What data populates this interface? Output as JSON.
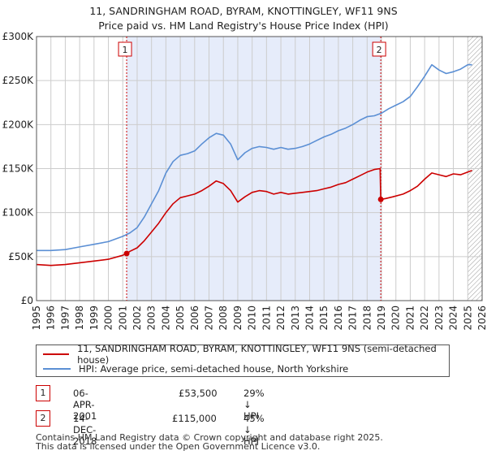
{
  "title_line1": "11, SANDRINGHAM ROAD, BYRAM, KNOTTINGLEY, WF11 9NS",
  "title_line2": "Price paid vs. HM Land Registry's House Price Index (HPI)",
  "chart_data": {
    "type": "line",
    "title": "11, SANDRINGHAM ROAD, BYRAM, KNOTTINGLEY, WF11 9NS — Price paid vs. HM Land Registry's House Price Index (HPI)",
    "xlim": [
      1995,
      2026
    ],
    "ylim": [
      0,
      300000
    ],
    "y_ticks": [
      0,
      50000,
      100000,
      150000,
      200000,
      250000,
      300000
    ],
    "y_tick_labels": [
      "£0",
      "£50K",
      "£100K",
      "£150K",
      "£200K",
      "£250K",
      "£300K"
    ],
    "x_ticks": [
      1995,
      1996,
      1997,
      1998,
      1999,
      2000,
      2001,
      2002,
      2003,
      2004,
      2005,
      2006,
      2007,
      2008,
      2009,
      2010,
      2011,
      2012,
      2013,
      2014,
      2015,
      2016,
      2017,
      2018,
      2019,
      2020,
      2021,
      2022,
      2023,
      2024,
      2025,
      2026
    ],
    "grid": true,
    "shaded_region": [
      2001.27,
      2018.95
    ],
    "hatched_after": 2025.0,
    "series": [
      {
        "name": "11, SANDRINGHAM ROAD, BYRAM, KNOTTINGLEY, WF11 9NS (semi-detached house)",
        "color": "#cc0000",
        "x": [
          1995,
          1996,
          1997,
          1998,
          1999,
          2000,
          2001.0,
          2001.27,
          2001.5,
          2002,
          2002.5,
          2003,
          2003.5,
          2004,
          2004.5,
          2005,
          2005.5,
          2006,
          2006.5,
          2007,
          2007.5,
          2008,
          2008.5,
          2009,
          2009.5,
          2010,
          2010.5,
          2011,
          2011.5,
          2012,
          2012.5,
          2013,
          2013.5,
          2014,
          2014.5,
          2015,
          2015.5,
          2016,
          2016.5,
          2017,
          2017.5,
          2018,
          2018.5,
          2018.9,
          2018.95,
          2019.3,
          2019.8,
          2020.5,
          2021,
          2021.5,
          2022,
          2022.5,
          2023,
          2023.5,
          2024,
          2024.5,
          2025,
          2025.3
        ],
        "values": [
          41000,
          40000,
          41000,
          43000,
          45000,
          47000,
          51500,
          53500,
          56000,
          60000,
          68000,
          78000,
          88000,
          100000,
          110000,
          117000,
          119000,
          121000,
          125000,
          130000,
          136000,
          133000,
          125000,
          112000,
          118000,
          123000,
          125000,
          124000,
          121000,
          123000,
          121000,
          122000,
          123000,
          124000,
          125000,
          127000,
          129000,
          132000,
          134000,
          138000,
          142000,
          146000,
          149000,
          150000,
          115000,
          116000,
          118000,
          121000,
          125000,
          130000,
          138000,
          145000,
          143000,
          141000,
          144000,
          143000,
          146000,
          148000
        ]
      },
      {
        "name": "HPI: Average price, semi-detached house, North Yorkshire",
        "color": "#5b8fd4",
        "x": [
          1995,
          1996,
          1997,
          1998,
          1999,
          2000,
          2001,
          2001.5,
          2002,
          2002.5,
          2003,
          2003.5,
          2004,
          2004.5,
          2005,
          2005.5,
          2006,
          2006.5,
          2007,
          2007.5,
          2008,
          2008.5,
          2009,
          2009.5,
          2010,
          2010.5,
          2011,
          2011.5,
          2012,
          2012.5,
          2013,
          2013.5,
          2014,
          2014.5,
          2015,
          2015.5,
          2016,
          2016.5,
          2017,
          2017.5,
          2018,
          2018.5,
          2019,
          2019.5,
          2020,
          2020.5,
          2021,
          2021.5,
          2022,
          2022.5,
          2023,
          2023.5,
          2024,
          2024.5,
          2025,
          2025.3
        ],
        "values": [
          57000,
          57000,
          58000,
          61000,
          64000,
          67000,
          73000,
          77000,
          83000,
          95000,
          110000,
          125000,
          145000,
          158000,
          165000,
          167000,
          170000,
          178000,
          185000,
          190000,
          188000,
          178000,
          160000,
          168000,
          173000,
          175000,
          174000,
          172000,
          174000,
          172000,
          173000,
          175000,
          178000,
          182000,
          186000,
          189000,
          193000,
          196000,
          200000,
          205000,
          209000,
          210000,
          213000,
          218000,
          222000,
          226000,
          232000,
          243000,
          255000,
          268000,
          262000,
          258000,
          260000,
          263000,
          268000,
          268000
        ]
      }
    ],
    "annotations": [
      {
        "label": "1",
        "x": 2001.27,
        "y": 53500
      },
      {
        "label": "2",
        "x": 2018.95,
        "y": 115000
      }
    ]
  },
  "legend": {
    "property_label": "11, SANDRINGHAM ROAD, BYRAM, KNOTTINGLEY, WF11 9NS (semi-detached house)",
    "hpi_label": "HPI: Average price, semi-detached house, North Yorkshire"
  },
  "transactions": [
    {
      "num": "1",
      "date": "06-APR-2001",
      "price": "£53,500",
      "hpi_diff": "29% ↓ HPI"
    },
    {
      "num": "2",
      "date": "14-DEC-2018",
      "price": "£115,000",
      "hpi_diff": "45% ↓ HPI"
    }
  ],
  "footer": {
    "line1": "Contains HM Land Registry data © Crown copyright and database right 2025.",
    "line2": "This data is licensed under the Open Government Licence v3.0."
  },
  "colors": {
    "property": "#cc0000",
    "hpi": "#5b8fd4",
    "shade": "#e6ecfa",
    "grid": "#cccccc"
  }
}
